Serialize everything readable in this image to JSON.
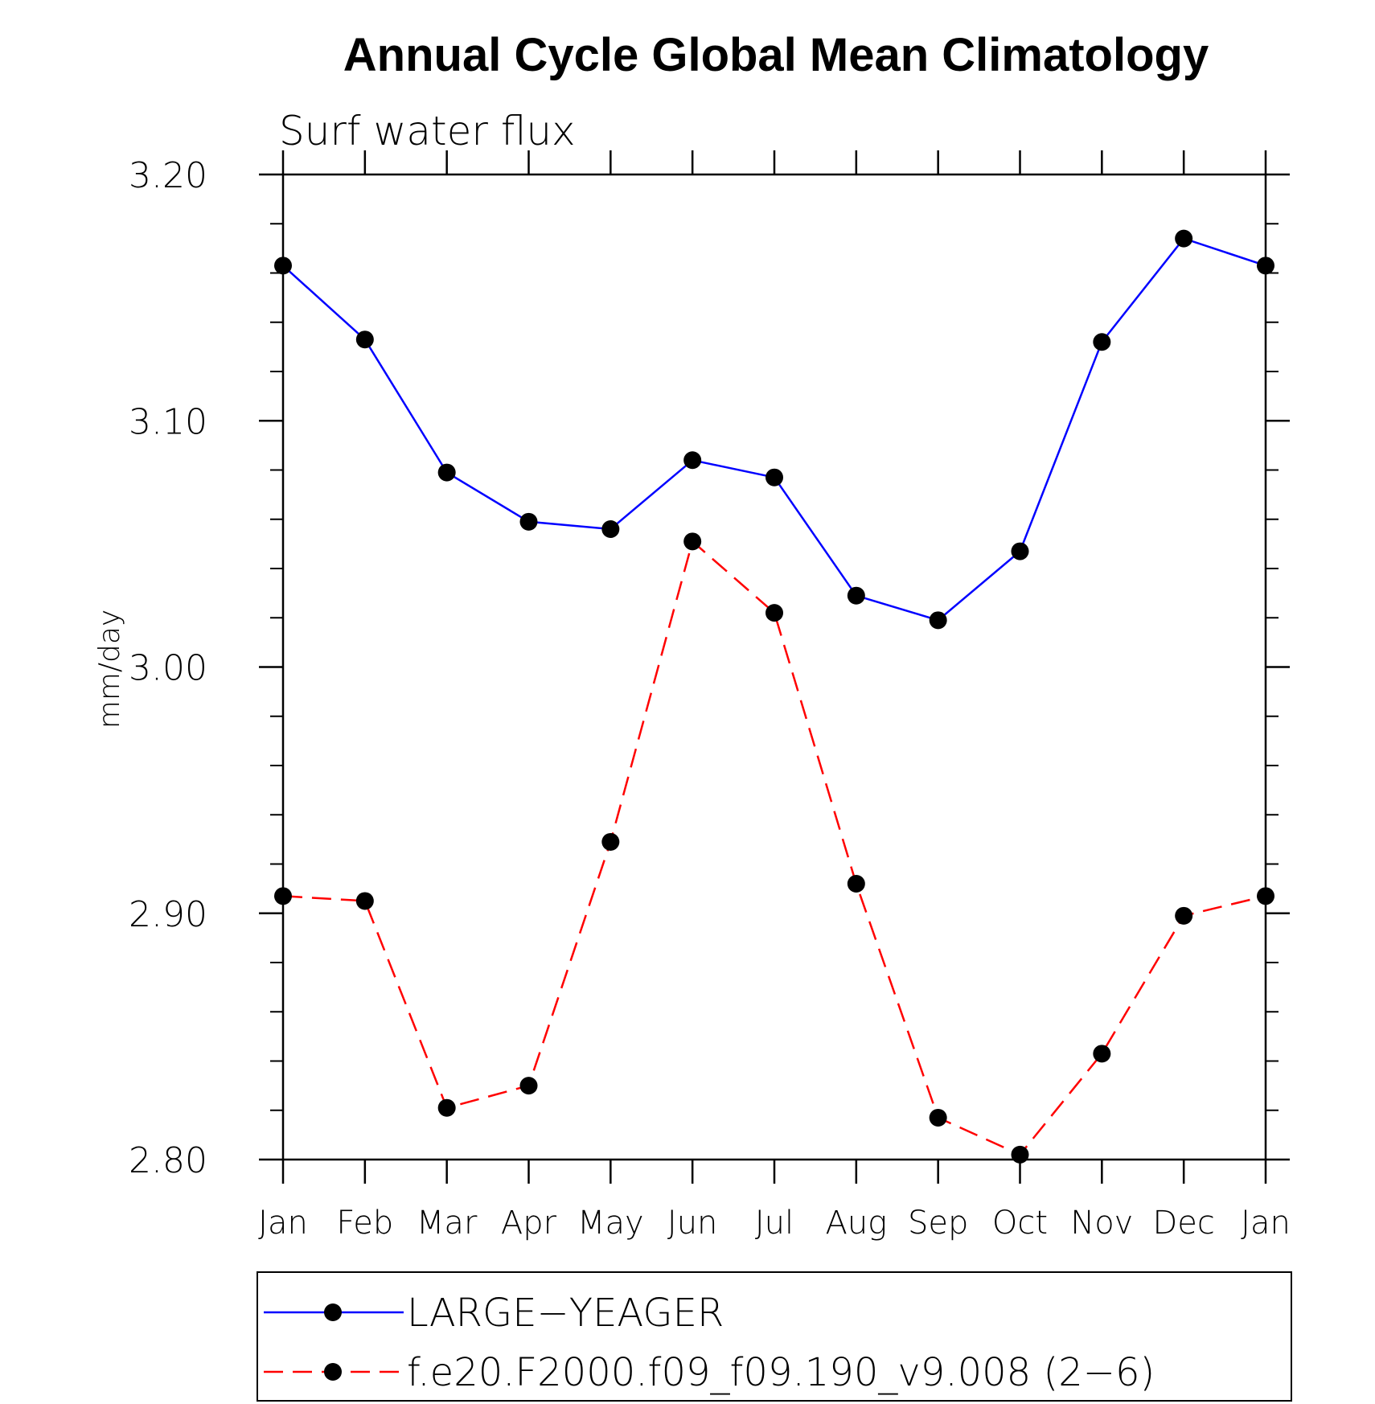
{
  "chart_data": {
    "type": "line",
    "title": "Annual Cycle Global Mean Climatology",
    "subtitle": "Surf water flux",
    "ylabel": "mm/day",
    "xlabel": "",
    "categories": [
      "Jan",
      "Feb",
      "Mar",
      "Apr",
      "May",
      "Jun",
      "Jul",
      "Aug",
      "Sep",
      "Oct",
      "Nov",
      "Dec",
      "Jan"
    ],
    "ylim": [
      2.8,
      3.2
    ],
    "yticks": [
      "2.80",
      "2.90",
      "3.00",
      "3.10",
      "3.20"
    ],
    "yminor_step": 0.02,
    "grid": false,
    "legend_position": "bottom",
    "series": [
      {
        "name": "LARGE−YEAGER",
        "color": "#0000ff",
        "dash": "solid",
        "marker": "filled-circle",
        "values": [
          3.163,
          3.133,
          3.079,
          3.059,
          3.056,
          3.084,
          3.077,
          3.029,
          3.019,
          3.047,
          3.132,
          3.174,
          3.163
        ]
      },
      {
        "name": "f.e20.F2000.f09_f09.190_v9.008 (2−6)",
        "color": "#ff0000",
        "dash": "dashed",
        "marker": "filled-circle",
        "values": [
          2.907,
          2.905,
          2.821,
          2.83,
          2.929,
          3.051,
          3.022,
          2.912,
          2.817,
          2.802,
          2.843,
          2.899,
          2.907
        ]
      }
    ]
  }
}
